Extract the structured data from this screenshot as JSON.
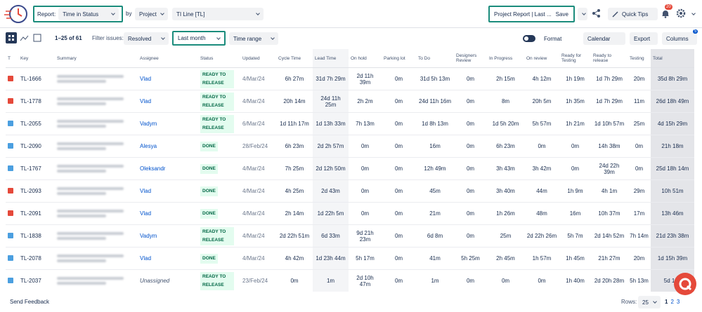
{
  "toolbar": {
    "report_label": "Report:",
    "report_value": "Time in Status",
    "by_label": "by",
    "group_value": "Project",
    "project_value": "TI Line [TL]",
    "saved_report": "Project Report | Last ...",
    "save": "Save",
    "quick_tips": "Quick Tips",
    "notifications": "20"
  },
  "filter_bar": {
    "range": "1–25 of 61",
    "filter_label": "Filter issues:",
    "filter_value": "Resolved",
    "period": "Last month",
    "time_range": "Time range",
    "format": "Format",
    "calendar": "Calendar",
    "export": "Export",
    "columns": "Columns",
    "columns_badge": "5"
  },
  "table": {
    "columns": [
      "T",
      "Key",
      "Summary",
      "Assignee",
      "Status",
      "Updated",
      "Cycle Time",
      "Lead Time",
      "On hold",
      "Parking lot",
      "To Do",
      "Designers Review",
      "In Progress",
      "On review",
      "Ready for Testing",
      "Ready to release",
      "Testing",
      "Total"
    ],
    "rows": [
      {
        "icon_color": "#e5493a",
        "key": "TL-1666",
        "assignee": "Vlad",
        "status": "READY TO RELEASE",
        "updated": "4/Mar/24",
        "times": [
          "6h 27m",
          "31d 7h 29m",
          "2d 11h 39m",
          "0m",
          "31d 5h 13m",
          "0m",
          "2h 15m",
          "4h 12m",
          "1h 19m",
          "1d 7h 29m",
          "20m",
          "35d 8h 29m"
        ]
      },
      {
        "icon_color": "#e5493a",
        "key": "TL-1778",
        "assignee": "Vlad",
        "status": "READY TO RELEASE",
        "updated": "4/Mar/24",
        "times": [
          "20h 14m",
          "24d 11h 25m",
          "2h 2m",
          "0m",
          "24d 11h 16m",
          "0m",
          "8m",
          "20h 5m",
          "1h 35m",
          "1d 7h 29m",
          "11m",
          "26d 18h 49m"
        ]
      },
      {
        "icon_color": "#4b9fe0",
        "key": "TL-2055",
        "assignee": "Vadym",
        "status": "READY TO RELEASE",
        "updated": "6/Mar/24",
        "times": [
          "1d 11h 17m",
          "1d 13h 33m",
          "7h 13m",
          "0m",
          "1d 8h 13m",
          "0m",
          "1d 5h 20m",
          "5h 57m",
          "1h 21m",
          "1d 10h 57m",
          "25m",
          "4d 15h 29m"
        ]
      },
      {
        "icon_color": "#4b9fe0",
        "key": "TL-2090",
        "assignee": "Alesya",
        "status": "DONE",
        "updated": "28/Feb/24",
        "times": [
          "6h 23m",
          "2d 2h 57m",
          "0m",
          "0m",
          "16m",
          "0m",
          "6h 23m",
          "0m",
          "0m",
          "14h 38m",
          "0m",
          "21h 18m"
        ]
      },
      {
        "icon_color": "#4b9fe0",
        "key": "TL-1767",
        "assignee": "Oleksandr",
        "status": "DONE",
        "updated": "4/Mar/24",
        "times": [
          "7h 25m",
          "2d 12h 50m",
          "0m",
          "0m",
          "12h 49m",
          "0m",
          "3h 43m",
          "3h 42m",
          "0m",
          "24d 22h 39m",
          "0m",
          "25d 18h 14m"
        ]
      },
      {
        "icon_color": "#e5493a",
        "key": "TL-2093",
        "assignee": "Vlad",
        "status": "DONE",
        "updated": "4/Mar/24",
        "times": [
          "4h 25m",
          "2d 43m",
          "0m",
          "0m",
          "45m",
          "0m",
          "3h 40m",
          "44m",
          "1h 9m",
          "4h 1m",
          "29m",
          "10h 51m"
        ]
      },
      {
        "icon_color": "#e5493a",
        "key": "TL-2091",
        "assignee": "Vlad",
        "status": "DONE",
        "updated": "4/Mar/24",
        "times": [
          "2h 14m",
          "1d 22h 5m",
          "0m",
          "0m",
          "21m",
          "0m",
          "1h 26m",
          "48m",
          "16m",
          "10h 37m",
          "17m",
          "13h 46m"
        ]
      },
      {
        "icon_color": "#4b9fe0",
        "key": "TL-1838",
        "assignee": "Vadym",
        "status": "READY TO RELEASE",
        "updated": "4/Mar/24",
        "times": [
          "2d 22h 51m",
          "6d 33m",
          "9d 21h 23m",
          "0m",
          "6d 8m",
          "0m",
          "25m",
          "2d 22h 26m",
          "5h 7m",
          "2d 14h 52m",
          "7h 14m",
          "21d 23h 38m"
        ]
      },
      {
        "icon_color": "#4b9fe0",
        "key": "TL-2078",
        "assignee": "Vlad",
        "status": "DONE",
        "updated": "4/Mar/24",
        "times": [
          "4h 42m",
          "1d 23h 44m",
          "5h 17m",
          "0m",
          "41m",
          "5h 25m",
          "2h 45m",
          "1h 57m",
          "1h 45m",
          "21h 27m",
          "20m",
          "1d 15h 39m"
        ]
      },
      {
        "icon_color": "#4b9fe0",
        "key": "TL-2037",
        "assignee": "Unassigned",
        "status": "READY TO RELEASE",
        "updated": "23/Feb/24",
        "times": [
          "0m",
          "1m",
          "2d 10h 47m",
          "0m",
          "1m",
          "0m",
          "0m",
          "0m",
          "1h 40m",
          "2d 20h 28m",
          "5h 13m",
          "5d 14h"
        ]
      }
    ]
  },
  "footer": {
    "feedback": "Send Feedback",
    "rows_label": "Rows:",
    "rows_value": "25",
    "pages": [
      "1",
      "2",
      "3"
    ]
  }
}
